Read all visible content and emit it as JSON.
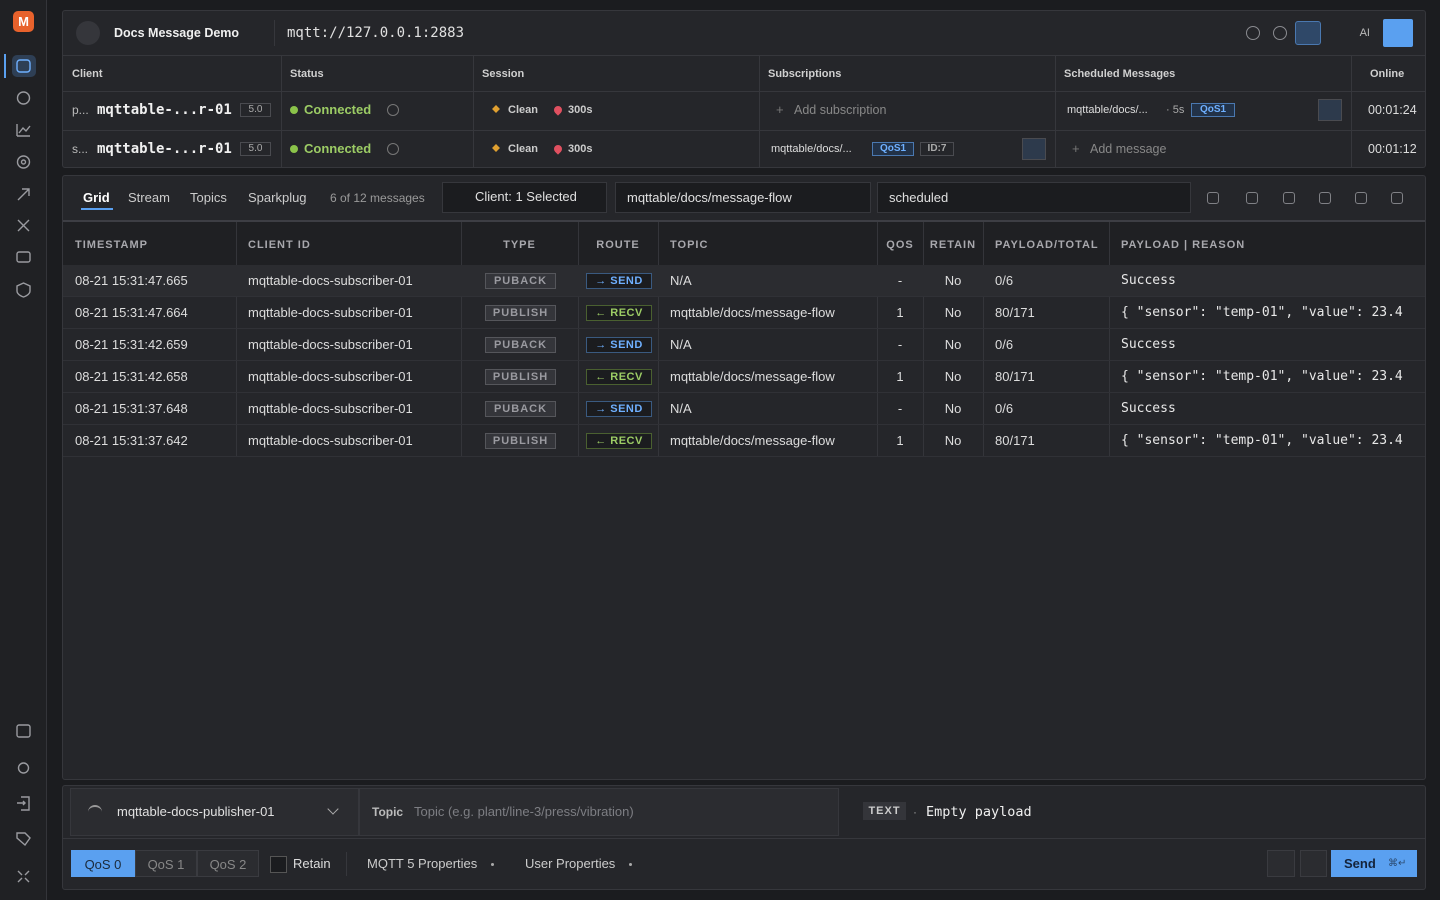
{
  "app": {
    "logo": "M"
  },
  "header": {
    "title": "Docs Message Demo",
    "url": "mqtt://127.0.0.1:2883",
    "ai": "AI"
  },
  "clients": {
    "columns": [
      "Client",
      "Status",
      "Session",
      "Subscriptions",
      "Scheduled Messages",
      "Online"
    ],
    "rows": [
      {
        "prefix": "p...",
        "name": "mqttable-...r-01",
        "version": "5.0",
        "status": "Connected",
        "session": "Clean",
        "expiry": "300s",
        "subscription": "Add subscription",
        "scheduled_topic": "mqttable/docs/...",
        "scheduled_interval": "· 5s",
        "scheduled_qos": "QoS1",
        "online": "00:01:24"
      },
      {
        "prefix": "s...",
        "name": "mqttable-...r-01",
        "version": "5.0",
        "status": "Connected",
        "session": "Clean",
        "expiry": "300s",
        "subscription_topic": "mqttable/docs/...",
        "subscription_qos": "QoS1",
        "subscription_id": "ID:7",
        "scheduled": "Add message",
        "online": "00:01:12"
      }
    ]
  },
  "toolbar": {
    "tabs": [
      "Grid",
      "Stream",
      "Topics",
      "Sparkplug"
    ],
    "count": "6 of 12 messages",
    "client_filter": "Client: 1 Selected",
    "topic_filter": "mqttable/docs/message-flow",
    "text_filter": "scheduled"
  },
  "messages": {
    "columns": [
      "TIMESTAMP",
      "CLIENT ID",
      "TYPE",
      "ROUTE",
      "TOPIC",
      "QOS",
      "RETAIN",
      "PAYLOAD/TOTAL",
      "PAYLOAD | REASON"
    ],
    "rows": [
      [
        "08-21 15:31:47.665",
        "mqttable-docs-subscriber-01",
        "PUBACK",
        "→ SEND",
        "N/A",
        "-",
        "No",
        "0/6",
        "Success"
      ],
      [
        "08-21 15:31:47.664",
        "mqttable-docs-subscriber-01",
        "PUBLISH",
        "← RECV",
        "mqttable/docs/message-flow",
        "1",
        "No",
        "80/171",
        "{ \"sensor\": \"temp-01\", \"value\": 23.4"
      ],
      [
        "08-21 15:31:42.659",
        "mqttable-docs-subscriber-01",
        "PUBACK",
        "→ SEND",
        "N/A",
        "-",
        "No",
        "0/6",
        "Success"
      ],
      [
        "08-21 15:31:42.658",
        "mqttable-docs-subscriber-01",
        "PUBLISH",
        "← RECV",
        "mqttable/docs/message-flow",
        "1",
        "No",
        "80/171",
        "{ \"sensor\": \"temp-01\", \"value\": 23.4"
      ],
      [
        "08-21 15:31:37.648",
        "mqttable-docs-subscriber-01",
        "PUBACK",
        "→ SEND",
        "N/A",
        "-",
        "No",
        "0/6",
        "Success"
      ],
      [
        "08-21 15:31:37.642",
        "mqttable-docs-subscriber-01",
        "PUBLISH",
        "← RECV",
        "mqttable/docs/message-flow",
        "1",
        "No",
        "80/171",
        "{ \"sensor\": \"temp-01\", \"value\": 23.4"
      ]
    ]
  },
  "composer": {
    "client": "mqttable-docs-publisher-01",
    "topic_label": "Topic",
    "topic_placeholder": "Topic (e.g. plant/line-3/press/vibration)",
    "format": "TEXT",
    "separator": "·",
    "payload": "Empty payload"
  },
  "footer": {
    "qos": [
      "QoS 0",
      "QoS 1",
      "QoS 2"
    ],
    "retain": "Retain",
    "mqtt5": "MQTT 5 Properties",
    "user_props": "User Properties",
    "send": "Send",
    "shortcut": "⌘↵"
  }
}
